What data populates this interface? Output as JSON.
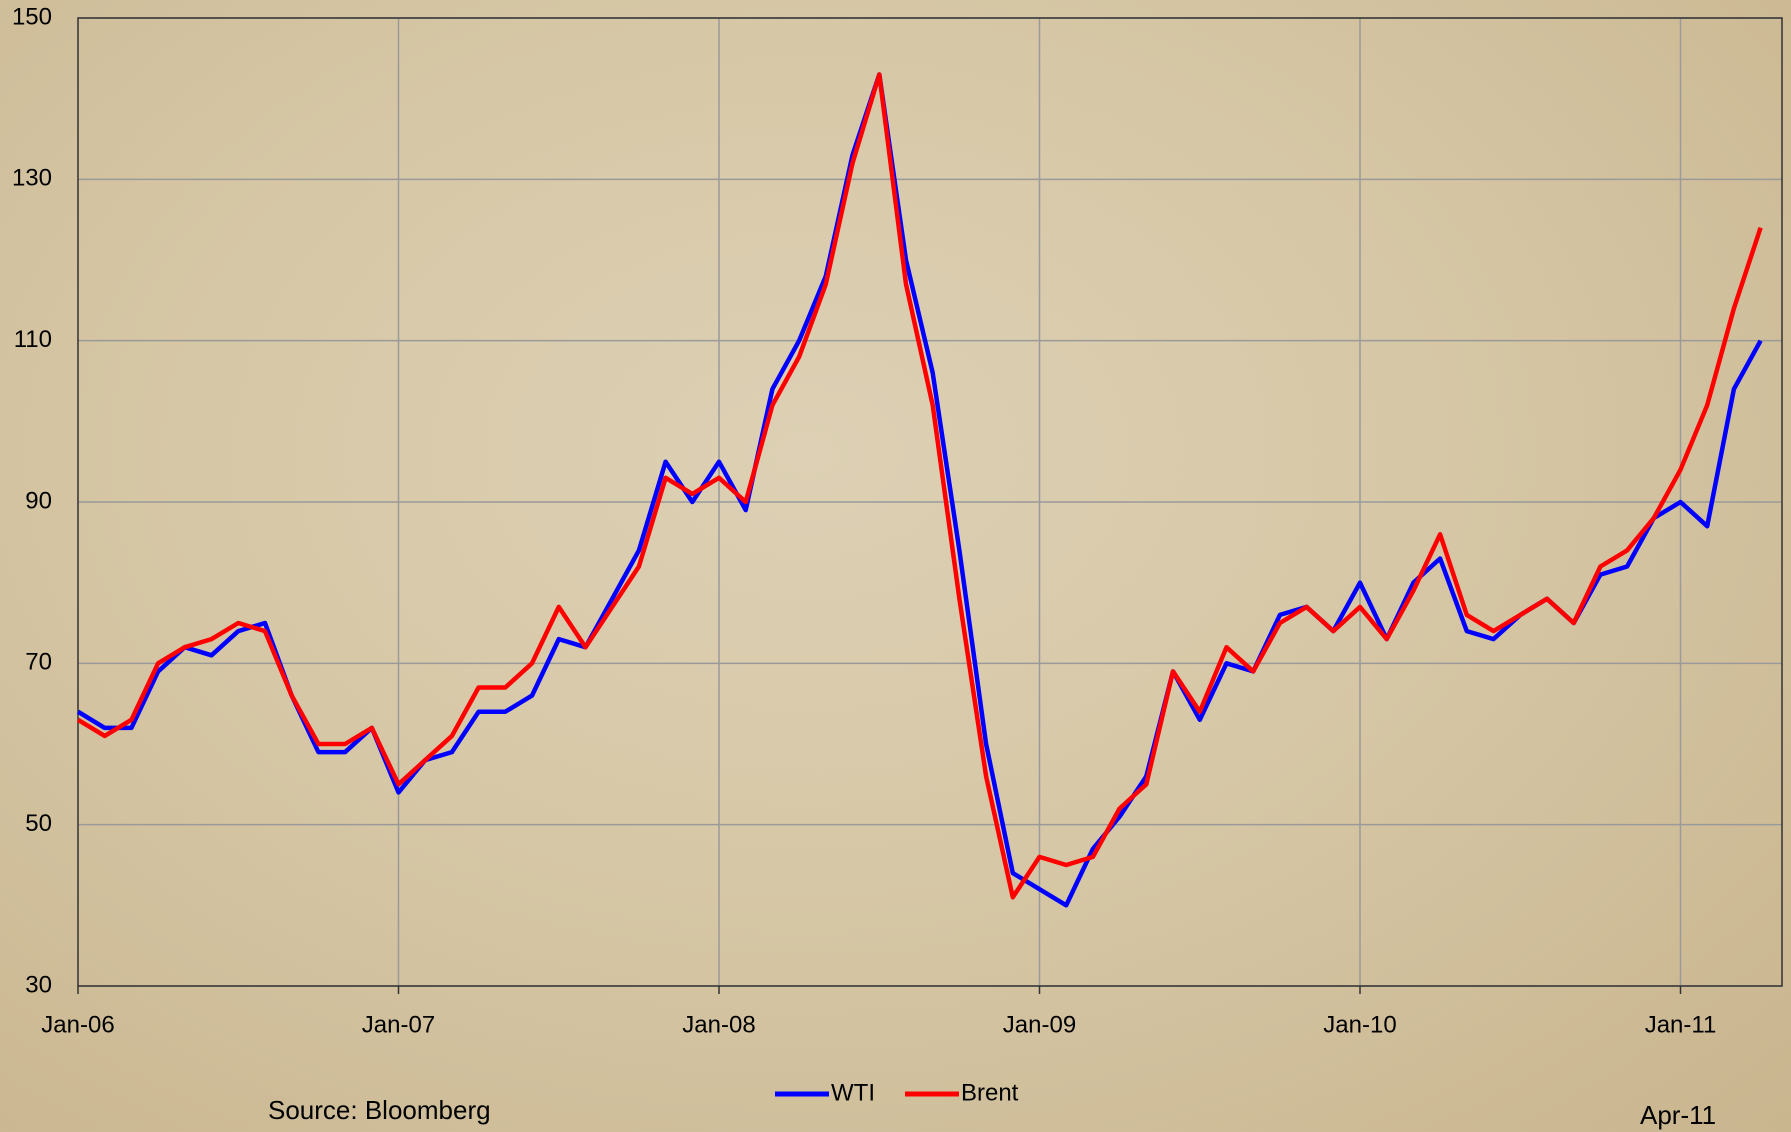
{
  "chart_data": {
    "type": "line",
    "categories": [
      "Jan-06",
      null,
      null,
      null,
      null,
      null,
      null,
      null,
      null,
      null,
      null,
      null,
      "Jan-07",
      null,
      null,
      null,
      null,
      null,
      null,
      null,
      null,
      null,
      null,
      null,
      "Jan-08",
      null,
      null,
      null,
      null,
      null,
      null,
      null,
      null,
      null,
      null,
      null,
      "Jan-09",
      null,
      null,
      null,
      null,
      null,
      null,
      null,
      null,
      null,
      null,
      null,
      "Jan-10",
      null,
      null,
      null,
      null,
      null,
      null,
      null,
      null,
      null,
      null,
      null,
      "Jan-11",
      null,
      null,
      null
    ],
    "series": [
      {
        "name": "WTI",
        "color": "#0000ff",
        "values": [
          64,
          62,
          62,
          69,
          72,
          71,
          74,
          75,
          66,
          59,
          59,
          62,
          54,
          58,
          59,
          64,
          64,
          66,
          73,
          72,
          78,
          84,
          95,
          90,
          95,
          89,
          104,
          110,
          118,
          133,
          143,
          120,
          106,
          84,
          60,
          44,
          42,
          40,
          47,
          51,
          56,
          69,
          63,
          70,
          69,
          76,
          77,
          74,
          80,
          73,
          80,
          83,
          74,
          73,
          76,
          78,
          75,
          81,
          82,
          88,
          90,
          87,
          104,
          110
        ]
      },
      {
        "name": "Brent",
        "color": "#ff0000",
        "values": [
          63,
          61,
          63,
          70,
          72,
          73,
          75,
          74,
          66,
          60,
          60,
          62,
          55,
          58,
          61,
          67,
          67,
          70,
          77,
          72,
          77,
          82,
          93,
          91,
          93,
          90,
          102,
          108,
          117,
          132,
          143,
          117,
          102,
          78,
          56,
          41,
          46,
          45,
          46,
          52,
          55,
          69,
          64,
          72,
          69,
          75,
          77,
          74,
          77,
          73,
          79,
          86,
          76,
          74,
          76,
          78,
          75,
          82,
          84,
          88,
          94,
          102,
          114,
          124
        ]
      }
    ],
    "ylim": [
      30,
      150
    ],
    "yticks": [
      30,
      50,
      70,
      90,
      110,
      130,
      150
    ],
    "grid": true,
    "legend": "bottom",
    "annotations": [
      "Source: Bloomberg",
      "Apr-11"
    ]
  }
}
